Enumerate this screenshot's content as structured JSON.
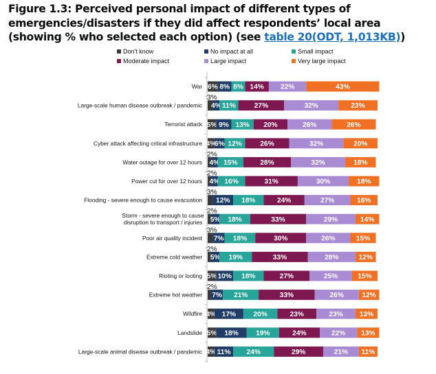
{
  "header": {
    "title_text": "Figure 1.3: Perceived personal impact of different types of emergencies/disasters if they did affect respondents’ local area (showing % who selected each option) (see ",
    "link_text": "table 20(ODT, 1,013KB)",
    "title_suffix": ")"
  },
  "chart_data": {
    "type": "bar",
    "orientation": "horizontal",
    "stacked": true,
    "title": "Perceived personal impact of different types of emergencies/disasters if they did affect respondents’ local area (showing % who selected each option)",
    "xlabel": "",
    "ylabel": "",
    "xlim": [
      0,
      100
    ],
    "unit": "%",
    "grid": false,
    "legend_position": "top",
    "categories": [
      "War",
      "Large-scale human disease outbreak / pandemic",
      "Terrorist attack",
      "Cyber attack affecting critical infrastructure",
      "Water outage for over 12 hours",
      "Power cut for over 12 hours",
      "Flooding - severe enough to cause evacuation",
      "Storm - severe enough to cause disruption to transport / injuries",
      "Poor air quality incident",
      "Extreme cold weather",
      "Rioting or looting",
      "Extreme hot weather",
      "Wildfire",
      "Landslide",
      "Large-scale animal disease outbreak / pandemic"
    ],
    "series": [
      {
        "name": "Don't know",
        "color": "#3a3a3a",
        "values": [
          6,
          3,
          5,
          4,
          2,
          2,
          3,
          2,
          3,
          2,
          5,
          2,
          4,
          5,
          4
        ]
      },
      {
        "name": "No impact at all",
        "color": "#1f3d66",
        "values": [
          8,
          4,
          9,
          6,
          4,
          4,
          12,
          5,
          7,
          5,
          10,
          7,
          17,
          18,
          11
        ]
      },
      {
        "name": "Small impact",
        "color": "#27a59a",
        "values": [
          8,
          11,
          13,
          12,
          15,
          16,
          18,
          18,
          18,
          19,
          18,
          21,
          20,
          19,
          24
        ]
      },
      {
        "name": "Moderate impact",
        "color": "#7d1850",
        "values": [
          14,
          27,
          20,
          26,
          28,
          31,
          24,
          33,
          30,
          33,
          27,
          33,
          23,
          24,
          29
        ]
      },
      {
        "name": "Large impact",
        "color": "#a98bd4",
        "values": [
          22,
          32,
          26,
          32,
          32,
          30,
          27,
          29,
          26,
          28,
          25,
          26,
          23,
          22,
          21
        ]
      },
      {
        "name": "Very large impact",
        "color": "#f07024",
        "values": [
          43,
          23,
          26,
          20,
          18,
          18,
          16,
          14,
          15,
          12,
          15,
          12,
          13,
          13,
          11
        ]
      }
    ]
  }
}
